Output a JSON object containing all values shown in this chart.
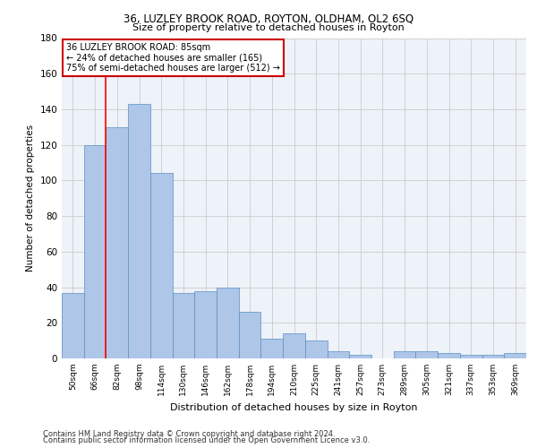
{
  "title1": "36, LUZLEY BROOK ROAD, ROYTON, OLDHAM, OL2 6SQ",
  "title2": "Size of property relative to detached houses in Royton",
  "xlabel": "Distribution of detached houses by size in Royton",
  "ylabel": "Number of detached properties",
  "categories": [
    "50sqm",
    "66sqm",
    "82sqm",
    "98sqm",
    "114sqm",
    "130sqm",
    "146sqm",
    "162sqm",
    "178sqm",
    "194sqm",
    "210sqm",
    "225sqm",
    "241sqm",
    "257sqm",
    "273sqm",
    "289sqm",
    "305sqm",
    "321sqm",
    "337sqm",
    "353sqm",
    "369sqm"
  ],
  "values": [
    37,
    120,
    130,
    143,
    104,
    37,
    38,
    40,
    26,
    11,
    14,
    10,
    4,
    2,
    0,
    4,
    4,
    3,
    2,
    2,
    3
  ],
  "bar_color": "#aec6e8",
  "bar_edge_color": "#5a8fc2",
  "red_line_x": 1.5,
  "annotation_title": "36 LUZLEY BROOK ROAD: 85sqm",
  "annotation_line1": "← 24% of detached houses are smaller (165)",
  "annotation_line2": "75% of semi-detached houses are larger (512) →",
  "annotation_box_color": "#ffffff",
  "annotation_border_color": "#cc0000",
  "footer1": "Contains HM Land Registry data © Crown copyright and database right 2024.",
  "footer2": "Contains public sector information licensed under the Open Government Licence v3.0.",
  "background_color": "#eef2f9",
  "grid_color": "#cccccc",
  "ylim": [
    0,
    180
  ],
  "yticks": [
    0,
    20,
    40,
    60,
    80,
    100,
    120,
    140,
    160,
    180
  ]
}
